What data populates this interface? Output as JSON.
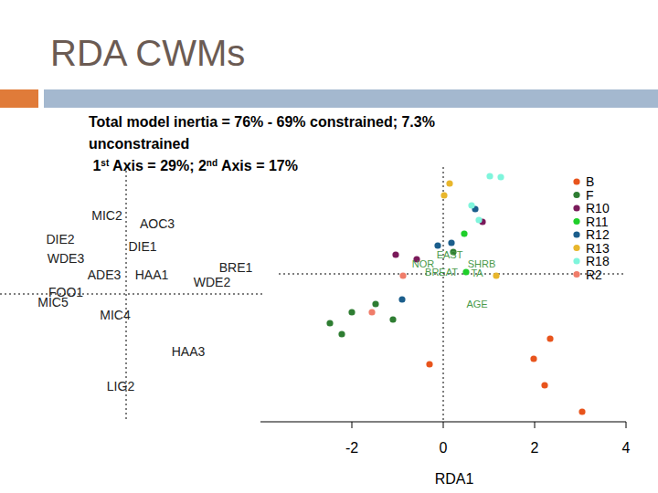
{
  "slide": {
    "title": "RDA CWMs",
    "description": [
      [
        {
          "text": "Total model inertia = 76% - 69% constrained; 7.3%",
          "sup": false
        }
      ],
      [
        {
          "text": "unconstrained",
          "sup": false
        }
      ],
      [
        {
          "text": " 1",
          "sup": false
        },
        {
          "text": "st",
          "sup": true
        },
        {
          "text": " Axis = 29%; 2",
          "sup": false
        },
        {
          "text": "nd",
          "sup": true
        },
        {
          "text": " Axis = 17%",
          "sup": false
        }
      ]
    ]
  },
  "chart_data": [
    {
      "type": "text_scatter",
      "tick_labels": false,
      "xlim": [
        -2,
        3
      ],
      "ylim": [
        -2.8,
        2.8
      ],
      "labels": [
        "MIC2",
        "AOC3",
        "DIE2",
        "DIE1",
        "WDE3",
        "BRE1",
        "WDE2",
        "ADE3",
        "HAA1",
        "FOO1",
        "MIC5",
        "MIC4",
        "HAA3",
        "LIG2"
      ],
      "x": [
        -0.42,
        0.68,
        -1.44,
        0.36,
        -1.32,
        2.4,
        1.88,
        -0.48,
        0.56,
        -1.32,
        -1.6,
        -0.24,
        1.36,
        -0.12
      ],
      "y": [
        1.72,
        1.54,
        1.2,
        1.04,
        0.78,
        0.58,
        0.26,
        0.42,
        0.42,
        0.04,
        -0.18,
        -0.46,
        -1.26,
        -2.02
      ]
    },
    {
      "type": "scatter",
      "x_label": "RDA1",
      "xlim": [
        -4,
        4
      ],
      "xticks": [
        -2,
        0,
        2,
        4
      ],
      "ylim": [
        -3.24,
        2.34
      ],
      "tick_labels": "x",
      "legend": "top-right",
      "marker": "circle",
      "series": [
        {
          "name": "B",
          "color": "#e8541c",
          "x": [
            2.34,
            1.98,
            2.22,
            3.04,
            -0.3
          ],
          "values": [
            -1.42,
            -1.86,
            -2.44,
            -3.02,
            -1.98
          ]
        },
        {
          "name": "F",
          "color": "#2e7d32",
          "x": [
            0.22,
            -1.48,
            -2.0,
            -2.48,
            -2.22,
            -1.1
          ],
          "values": [
            0.48,
            -0.66,
            -0.84,
            -1.08,
            -1.32,
            -1.0
          ]
        },
        {
          "name": "R10",
          "color": "#7a1a5a",
          "x": [
            0.86,
            -1.04,
            -0.58
          ],
          "values": [
            1.14,
            0.42,
            0.32
          ]
        },
        {
          "name": "R11",
          "color": "#1fcf2a",
          "x": [
            0.46,
            0.5
          ],
          "values": [
            0.88,
            0.04
          ]
        },
        {
          "name": "R12",
          "color": "#1b5e8c",
          "x": [
            0.7,
            -0.12,
            0.18,
            -0.9
          ],
          "values": [
            1.42,
            0.62,
            0.68,
            -0.56
          ]
        },
        {
          "name": "R13",
          "color": "#e8b62c",
          "x": [
            0.14,
            0.02,
            1.16
          ],
          "values": [
            1.98,
            1.72,
            -0.04
          ]
        },
        {
          "name": "R18",
          "color": "#7ff5dc",
          "x": [
            1.02,
            1.26,
            0.62,
            0.78
          ],
          "values": [
            2.14,
            2.12,
            1.5,
            1.18
          ]
        },
        {
          "name": "R2",
          "color": "#f07d6a",
          "x": [
            -0.88,
            -1.56
          ],
          "values": [
            -0.04,
            -0.84
          ]
        }
      ],
      "annotations": [
        {
          "text": "EAST",
          "x": 0.14,
          "y": 0.42,
          "color": "#4a9a4a"
        },
        {
          "text": "NOR",
          "x": -0.44,
          "y": 0.22,
          "color": "#4a9a4a"
        },
        {
          "text": "SHRB",
          "x": 0.84,
          "y": 0.22,
          "color": "#4a9a4a"
        },
        {
          "text": "BREAT",
          "x": -0.04,
          "y": 0.04,
          "color": "#4a9a4a"
        },
        {
          "text": "TA",
          "x": 0.74,
          "y": 0.02,
          "color": "#4a9a4a"
        },
        {
          "text": "AGE",
          "x": 0.74,
          "y": -0.66,
          "color": "#4a9a4a"
        }
      ]
    }
  ]
}
